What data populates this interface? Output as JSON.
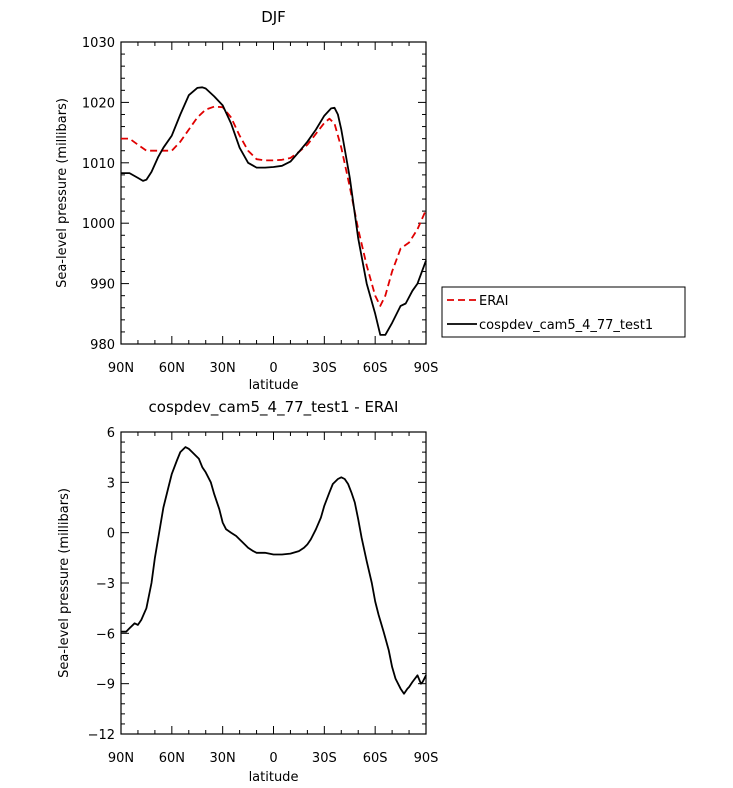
{
  "chart_data": [
    {
      "type": "line",
      "title": "DJF",
      "xlabel": "latitude",
      "ylabel": "Sea-level pressure (millibars)",
      "xlim": [
        90,
        -90
      ],
      "ylim": [
        980,
        1030
      ],
      "xticks": [
        90,
        60,
        30,
        0,
        -30,
        -60,
        -90
      ],
      "xtick_labels": [
        "90N",
        "60N",
        "30N",
        "0",
        "30S",
        "60S",
        "90S"
      ],
      "yticks": [
        980,
        990,
        1000,
        1010,
        1020,
        1030
      ],
      "ytick_labels": [
        "980",
        "990",
        "1000",
        "1010",
        "1020",
        "1030"
      ],
      "legend_position": "right",
      "series": [
        {
          "name": "ERAI",
          "color": "#e00000",
          "dash": "dashed",
          "x": [
            90,
            85,
            80,
            75,
            70,
            65,
            60,
            55,
            50,
            45,
            40,
            35,
            30,
            25,
            20,
            15,
            10,
            5,
            0,
            -5,
            -10,
            -15,
            -20,
            -25,
            -30,
            -33,
            -36,
            -40,
            -45,
            -50,
            -55,
            -60,
            -63,
            -66,
            -70,
            -75,
            -80,
            -85,
            -90
          ],
          "values": [
            1014,
            1014,
            1013,
            1012,
            1012,
            1012,
            1012,
            1013.5,
            1015.5,
            1017.5,
            1018.8,
            1019.3,
            1019.2,
            1017.5,
            1014.5,
            1012,
            1010.6,
            1010.4,
            1010.4,
            1010.5,
            1010.8,
            1011.8,
            1013,
            1014.8,
            1016.6,
            1017.3,
            1016.5,
            1012.5,
            1006,
            999,
            993,
            988,
            986.3,
            988,
            992,
            995.8,
            996.8,
            999,
            1002.2
          ]
        },
        {
          "name": "cospdev_cam5_4_77_test1",
          "color": "#000000",
          "dash": "solid",
          "x": [
            90,
            85,
            80,
            77,
            75,
            72,
            68,
            65,
            60,
            55,
            50,
            45,
            42,
            40,
            35,
            30,
            25,
            20,
            15,
            10,
            5,
            0,
            -5,
            -10,
            -15,
            -20,
            -25,
            -30,
            -34,
            -36,
            -38,
            -40,
            -45,
            -50,
            -55,
            -60,
            -63,
            -66,
            -70,
            -75,
            -78,
            -82,
            -85,
            -90
          ],
          "values": [
            1008.3,
            1008.3,
            1007.5,
            1007,
            1007.2,
            1008.5,
            1011,
            1012.5,
            1014.5,
            1018,
            1021.2,
            1022.4,
            1022.5,
            1022.3,
            1021,
            1019.5,
            1016.5,
            1012.5,
            1010,
            1009.2,
            1009.2,
            1009.3,
            1009.5,
            1010.2,
            1011.8,
            1013.5,
            1015.5,
            1017.8,
            1019,
            1019.1,
            1018,
            1015.5,
            1007.5,
            997.5,
            990,
            985,
            981.5,
            981.5,
            983.5,
            986.3,
            986.7,
            988.8,
            990,
            993.8
          ]
        }
      ]
    },
    {
      "type": "line",
      "title": "cospdev_cam5_4_77_test1 - ERAI",
      "xlabel": "latitude",
      "ylabel": "Sea-level pressure (millibars)",
      "xlim": [
        90,
        -90
      ],
      "ylim": [
        -12,
        6
      ],
      "xticks": [
        90,
        60,
        30,
        0,
        -30,
        -60,
        -90
      ],
      "xtick_labels": [
        "90N",
        "60N",
        "30N",
        "0",
        "30S",
        "60S",
        "90S"
      ],
      "yticks": [
        -12,
        -9,
        -6,
        -3,
        0,
        3,
        6
      ],
      "ytick_labels": [
        "−12",
        "−9",
        "−6",
        "−3",
        "0",
        "3",
        "6"
      ],
      "series": [
        {
          "color": "#000000",
          "dash": "solid",
          "x": [
            90,
            87,
            85,
            82,
            80,
            78,
            75,
            72,
            70,
            67,
            65,
            62,
            60,
            57,
            55,
            52,
            50,
            48,
            46,
            44,
            42,
            40,
            37,
            35,
            32,
            30,
            28,
            25,
            22,
            20,
            17,
            15,
            12,
            10,
            7,
            5,
            0,
            -5,
            -10,
            -15,
            -18,
            -20,
            -22,
            -25,
            -28,
            -30,
            -33,
            -35,
            -38,
            -40,
            -42,
            -44,
            -46,
            -48,
            -50,
            -52,
            -55,
            -58,
            -60,
            -62,
            -65,
            -68,
            -70,
            -72,
            -75,
            -77,
            -79,
            -80,
            -82,
            -85,
            -87,
            -88,
            -90
          ],
          "values": [
            -5.9,
            -5.9,
            -5.7,
            -5.4,
            -5.5,
            -5.2,
            -4.5,
            -3,
            -1.5,
            0.3,
            1.5,
            2.7,
            3.5,
            4.3,
            4.8,
            5.1,
            5,
            4.8,
            4.6,
            4.4,
            3.9,
            3.6,
            3,
            2.3,
            1.4,
            0.6,
            0.2,
            0,
            -0.2,
            -0.4,
            -0.7,
            -0.9,
            -1.1,
            -1.2,
            -1.2,
            -1.2,
            -1.3,
            -1.3,
            -1.25,
            -1.1,
            -0.9,
            -0.7,
            -0.4,
            0.2,
            0.9,
            1.6,
            2.4,
            2.9,
            3.2,
            3.3,
            3.2,
            2.9,
            2.4,
            1.8,
            0.8,
            -0.3,
            -1.7,
            -3,
            -4.1,
            -4.9,
            -5.9,
            -7,
            -8,
            -8.7,
            -9.3,
            -9.6,
            -9.3,
            -9.2,
            -8.9,
            -8.5,
            -9,
            -8.9,
            -8.5
          ]
        }
      ]
    }
  ]
}
